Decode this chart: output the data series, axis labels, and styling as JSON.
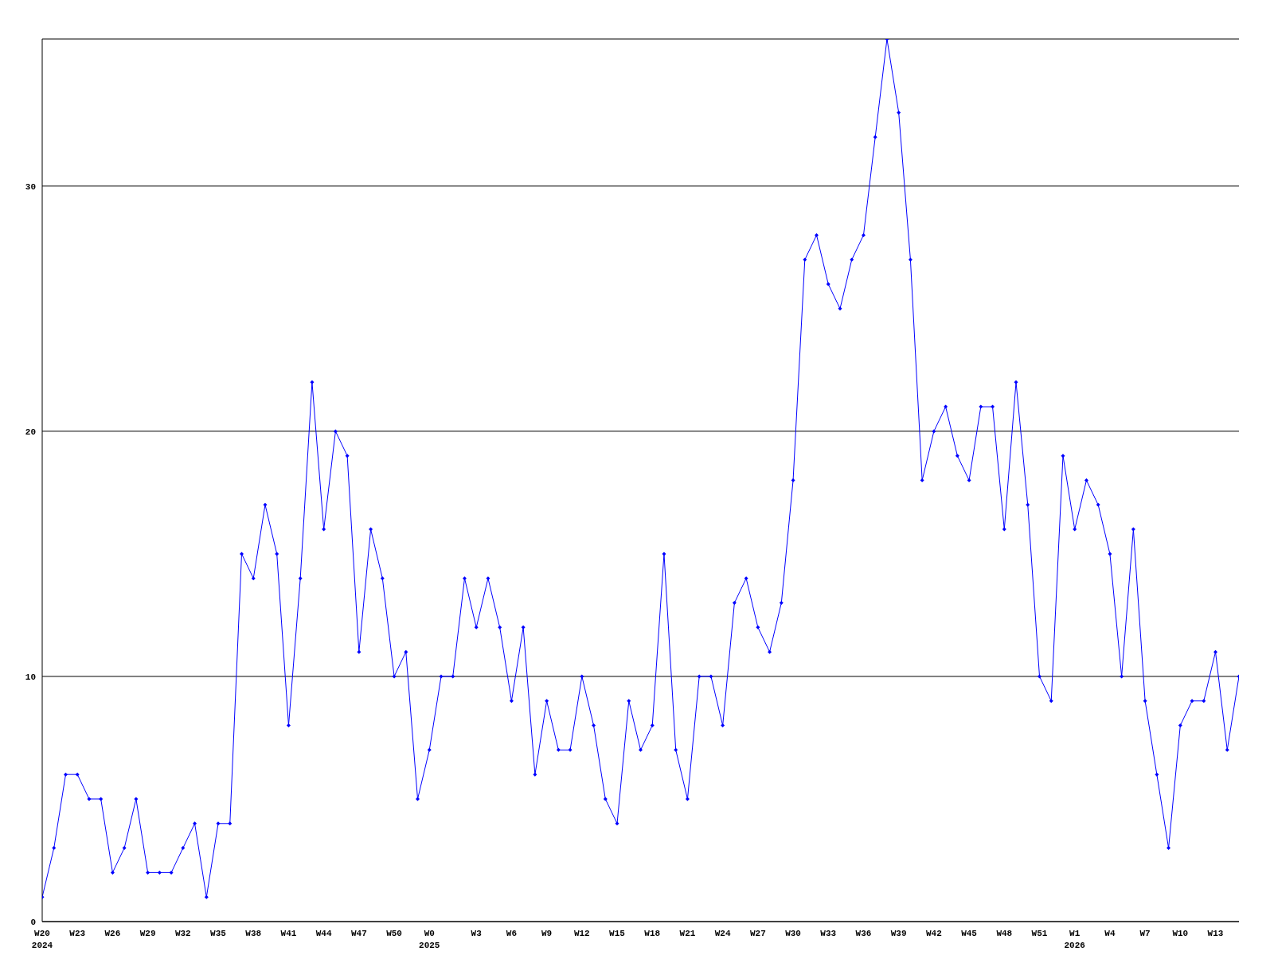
{
  "chart_data": {
    "type": "line",
    "categories": [
      "W20 2024",
      null,
      null,
      "W23",
      null,
      null,
      "W26",
      null,
      null,
      "W29",
      null,
      null,
      "W32",
      null,
      null,
      "W35",
      null,
      null,
      "W38",
      null,
      null,
      "W41",
      null,
      null,
      "W44",
      null,
      null,
      "W47",
      null,
      null,
      "W50",
      null,
      null,
      "W0 2025",
      null,
      null,
      null,
      "W3",
      null,
      null,
      "W6",
      null,
      null,
      "W9",
      null,
      null,
      "W12",
      null,
      null,
      "W15",
      null,
      null,
      "W18",
      null,
      null,
      "W21",
      null,
      null,
      "W24",
      null,
      null,
      "W27",
      null,
      null,
      "W30",
      null,
      null,
      "W33",
      null,
      null,
      "W36",
      null,
      null,
      "W39",
      null,
      null,
      "W42",
      null,
      null,
      "W45",
      null,
      null,
      "W48",
      null,
      null,
      "W51",
      null,
      null,
      "W1 2026",
      null,
      null,
      "W4",
      null,
      null,
      "W7",
      null,
      null,
      "W10",
      null,
      null,
      "W13",
      null,
      null
    ],
    "series": [
      {
        "color": "#0000ff",
        "values": [
          1,
          3,
          6,
          6,
          5,
          5,
          2,
          3,
          5,
          2,
          2,
          2,
          3,
          4,
          1,
          4,
          4,
          15,
          14,
          17,
          15,
          8,
          14,
          22,
          16,
          20,
          19,
          11,
          16,
          14,
          10,
          11,
          5,
          7,
          10,
          10,
          14,
          12,
          14,
          12,
          9,
          12,
          6,
          9,
          7,
          7,
          10,
          8,
          5,
          4,
          9,
          7,
          8,
          15,
          7,
          5,
          10,
          10,
          8,
          13,
          14,
          12,
          11,
          13,
          18,
          27,
          28,
          26,
          25,
          27,
          28,
          32,
          36,
          33,
          27,
          18,
          20,
          21,
          19,
          18,
          21,
          21,
          16,
          22,
          17,
          10,
          9,
          19,
          16,
          18,
          17,
          15,
          10,
          16,
          9,
          6,
          3,
          8,
          9,
          9,
          11,
          7,
          10
        ]
      }
    ],
    "ylim": [
      0,
      36
    ],
    "yticks": [
      0,
      10,
      20,
      30
    ],
    "grid": "y",
    "marker": "diamond",
    "line_style": "solid"
  }
}
